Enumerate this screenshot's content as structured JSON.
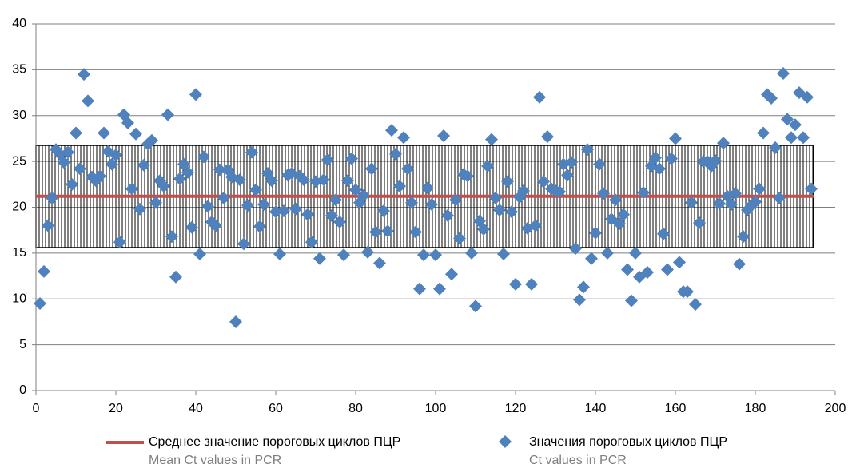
{
  "chart_data": {
    "type": "scatter",
    "xlim": [
      0,
      200
    ],
    "xticks": [
      0,
      20,
      40,
      60,
      80,
      100,
      120,
      140,
      160,
      180,
      200
    ],
    "ylim": [
      0,
      40
    ],
    "yticks": [
      0,
      5,
      10,
      15,
      20,
      25,
      30,
      35,
      40
    ],
    "grid": true,
    "mean": {
      "name": "Среднее значение пороговых циклов ПЦР",
      "name_en": "Mean Ct values in PCR",
      "color": "#c0504d",
      "value": 21.2,
      "x": [
        0,
        194.6
      ]
    },
    "band": {
      "lower": 15.6,
      "upper": 26.75,
      "x": [
        0,
        194.6
      ]
    },
    "series": [
      {
        "name": "Значения пороговых циклов ПЦР",
        "name_en": "Ct values in PCR",
        "color": "#4f81bd",
        "x": [
          1,
          2,
          3,
          4,
          5,
          6,
          7,
          8,
          9,
          10,
          11,
          12,
          13,
          14,
          15,
          16,
          17,
          18,
          19,
          20,
          21,
          22,
          23,
          24,
          25,
          26,
          27,
          28,
          29,
          30,
          31,
          32,
          33,
          34,
          35,
          36,
          37,
          38,
          39,
          40,
          41,
          42,
          43,
          44,
          45,
          46,
          47,
          48,
          49,
          50,
          51,
          52,
          53,
          54,
          55,
          56,
          57,
          58,
          59,
          60,
          61,
          62,
          63,
          64,
          65,
          66,
          67,
          68,
          69,
          70,
          71,
          72,
          73,
          74,
          75,
          76,
          77,
          78,
          79,
          80,
          81,
          82,
          83,
          84,
          85,
          86,
          87,
          88,
          89,
          90,
          91,
          92,
          93,
          94,
          95,
          96,
          97,
          98,
          99,
          100,
          101,
          102,
          103,
          104,
          105,
          106,
          107,
          108,
          109,
          110,
          111,
          112,
          113,
          114,
          115,
          116,
          117,
          118,
          119,
          120,
          121,
          122,
          123,
          124,
          125,
          126,
          127,
          128,
          129,
          130,
          131,
          132,
          133,
          134,
          135,
          136,
          137,
          138,
          139,
          140,
          141,
          142,
          143,
          144,
          145,
          146,
          147,
          148,
          149,
          150,
          151,
          152,
          153,
          154,
          155,
          156,
          157,
          158,
          159,
          160,
          161,
          162,
          163,
          164,
          165,
          166,
          167,
          168,
          169,
          170,
          171,
          172,
          173,
          174,
          175,
          176,
          177,
          178,
          179,
          180,
          181,
          182,
          183,
          184,
          185,
          186,
          187,
          188,
          189,
          190,
          191,
          192,
          193,
          194
        ],
        "values": [
          9.5,
          13,
          18,
          21,
          26.3,
          25.8,
          24.9,
          26,
          22.5,
          28.1,
          24.2,
          34.5,
          31.6,
          23.3,
          22.9,
          23.4,
          28.1,
          26.1,
          24.7,
          25.7,
          16.2,
          30.1,
          29.2,
          22,
          28,
          19.8,
          24.6,
          26.9,
          27.3,
          20.5,
          22.9,
          22.3,
          30.1,
          16.8,
          12.4,
          23.1,
          24.7,
          23.8,
          17.8,
          32.3,
          14.9,
          25.5,
          20.1,
          18.4,
          18,
          24.1,
          21,
          24.1,
          23.3,
          7.5,
          23,
          16,
          20.2,
          26,
          21.9,
          17.9,
          20.3,
          23.7,
          22.9,
          19.5,
          14.9,
          19.6,
          23.5,
          23.7,
          19.8,
          23.4,
          23,
          19.2,
          16.2,
          22.8,
          14.4,
          23,
          25.2,
          19.1,
          20.8,
          18.4,
          14.8,
          22.9,
          25.3,
          21.9,
          20.5,
          21.3,
          15.1,
          24.2,
          17.3,
          13.9,
          19.6,
          17.4,
          28.4,
          25.8,
          22.3,
          27.6,
          24.2,
          20.5,
          17.3,
          11.1,
          14.8,
          22.1,
          20.3,
          14.8,
          11.1,
          27.8,
          19.1,
          12.7,
          20.8,
          16.6,
          23.6,
          23.4,
          15,
          9.2,
          18.5,
          17.6,
          24.5,
          27.4,
          21,
          19.7,
          14.9,
          22.8,
          19.5,
          11.6,
          21.1,
          21.8,
          17.7,
          11.6,
          18,
          32,
          22.8,
          27.7,
          22,
          21.8,
          21.7,
          24.7,
          23.5,
          24.9,
          15.5,
          9.9,
          11.3,
          26.3,
          14.4,
          17.2,
          24.7,
          21.5,
          15,
          18.7,
          20.8,
          18.2,
          19.2,
          13.2,
          9.8,
          15,
          12.4,
          21.6,
          12.9,
          24.5,
          25.4,
          24.2,
          17.1,
          13.2,
          25.3,
          27.5,
          14,
          10.8,
          10.8,
          20.5,
          9.4,
          18.3,
          25,
          25,
          24.5,
          25.1,
          20.4,
          27,
          21.2,
          20.3,
          21.5,
          13.8,
          16.8,
          19.7,
          20.2,
          20.6,
          22,
          28.1,
          32.3,
          31.9,
          26.5,
          21,
          34.6,
          29.6,
          27.6,
          29,
          32.5,
          27.6,
          32,
          22
        ]
      }
    ]
  }
}
